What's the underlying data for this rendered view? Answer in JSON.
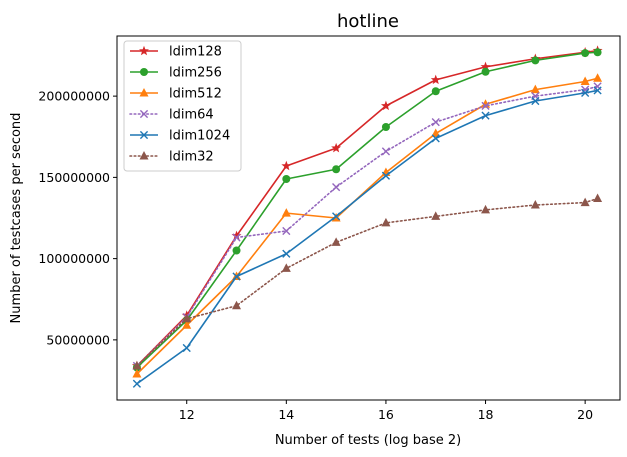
{
  "chart_data": {
    "type": "line",
    "title": "hotline",
    "xlabel": "Number of tests (log base 2)",
    "ylabel": "Number of testcases per second",
    "xlim": [
      10.6,
      20.7
    ],
    "ylim": [
      13000000,
      237000000
    ],
    "xticks": [
      12,
      14,
      16,
      18,
      20
    ],
    "yticks": [
      50000000,
      100000000,
      150000000,
      200000000
    ],
    "xtick_labels": [
      "12",
      "14",
      "16",
      "18",
      "20"
    ],
    "ytick_labels": [
      "50000000",
      "100000000",
      "150000000",
      "200000000"
    ],
    "grid": false,
    "legend_position": "top-left",
    "series": [
      {
        "name": "ldim128",
        "color": "#d62728",
        "marker": "star",
        "linestyle": "solid",
        "x": [
          11,
          12,
          13,
          14,
          15,
          16,
          17,
          18,
          19,
          20,
          20.25
        ],
        "y": [
          34000000,
          65000000,
          114000000,
          157000000,
          168000000,
          194000000,
          210000000,
          218000000,
          223000000,
          227000000,
          228000000
        ]
      },
      {
        "name": "ldim256",
        "color": "#2ca02c",
        "marker": "circle",
        "linestyle": "solid",
        "x": [
          11,
          12,
          13,
          14,
          15,
          16,
          17,
          18,
          19,
          20,
          20.25
        ],
        "y": [
          33000000,
          62000000,
          105000000,
          149000000,
          155000000,
          181000000,
          203000000,
          215000000,
          222000000,
          226500000,
          227000000
        ]
      },
      {
        "name": "ldim512",
        "color": "#ff7f0e",
        "marker": "triangle-up",
        "linestyle": "solid",
        "x": [
          11,
          12,
          13,
          14,
          15,
          16,
          17,
          18,
          19,
          20,
          20.25
        ],
        "y": [
          29000000,
          59000000,
          89000000,
          128000000,
          125000000,
          153000000,
          177000000,
          195000000,
          204000000,
          209000000,
          211000000
        ]
      },
      {
        "name": "ldim64",
        "color": "#9467bd",
        "marker": "x",
        "linestyle": "dotted",
        "x": [
          11,
          12,
          13,
          14,
          15,
          16,
          17,
          18,
          19,
          20,
          20.25
        ],
        "y": [
          34000000,
          64000000,
          113000000,
          117000000,
          144000000,
          166000000,
          184000000,
          194000000,
          200000000,
          204000000,
          206000000
        ]
      },
      {
        "name": "ldim1024",
        "color": "#1f77b4",
        "marker": "x",
        "linestyle": "solid",
        "x": [
          11,
          12,
          13,
          14,
          15,
          16,
          17,
          18,
          19,
          20,
          20.25
        ],
        "y": [
          23000000,
          45000000,
          89000000,
          103000000,
          126000000,
          151000000,
          174000000,
          188000000,
          197000000,
          202000000,
          203500000
        ]
      },
      {
        "name": "ldim32",
        "color": "#8c564b",
        "marker": "triangle-up",
        "linestyle": "dotted",
        "x": [
          11,
          12,
          13,
          14,
          15,
          16,
          17,
          18,
          19,
          20,
          20.25
        ],
        "y": [
          34000000,
          63000000,
          71000000,
          94000000,
          110000000,
          122000000,
          126000000,
          130000000,
          133000000,
          134500000,
          137000000
        ]
      }
    ]
  }
}
